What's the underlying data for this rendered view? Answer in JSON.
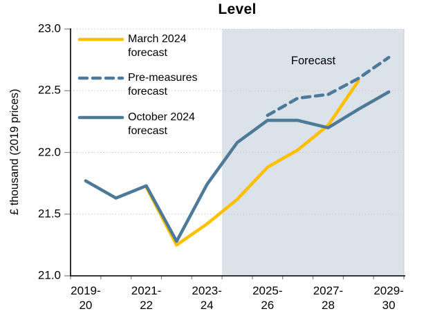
{
  "chart": {
    "title": "Level",
    "y_axis_title": "£ thousand (2019 prices)",
    "forecast_label": "Forecast",
    "legend": [
      {
        "label": "March 2024 forecast",
        "color": "#FFC000",
        "style": "solid"
      },
      {
        "label": "Pre-measures forecast",
        "color": "#4E7A99",
        "style": "dashed"
      },
      {
        "label": "October 2024 forecast",
        "color": "#4E7A99",
        "style": "solid"
      }
    ]
  },
  "colors": {
    "march_yellow": "#FFC000",
    "obr_blue": "#4E7A99",
    "forecast_region": "#DBE2EA",
    "gridline": "#C9C9C9",
    "axis": "#1A1A1A",
    "tick": "#7F7F7F"
  },
  "chart_data": {
    "type": "line",
    "title": "Level",
    "ylabel": "£ thousand (2019 prices)",
    "xlabel": "",
    "ylim": [
      21.0,
      23.0
    ],
    "grid": "horizontal-dotted",
    "legend_position": "top-left-inside",
    "forecast_region_label": "Forecast",
    "forecast_start_category": "2024-25",
    "categories": [
      "2019-20",
      "2020-21",
      "2021-22",
      "2022-23",
      "2023-24",
      "2024-25",
      "2025-26",
      "2026-27",
      "2027-28",
      "2028-29",
      "2029-30"
    ],
    "x_tick_labels": [
      "2019-20",
      "2021-22",
      "2023-24",
      "2025-26",
      "2027-28",
      "2029-30"
    ],
    "y_tick_labels": [
      "21.0",
      "21.5",
      "22.0",
      "22.5",
      "23.0"
    ],
    "series": [
      {
        "id": "march-2024-forecast",
        "name": "March 2024 forecast",
        "color": "#FFC000",
        "dash": "solid",
        "values": [
          null,
          null,
          21.72,
          21.25,
          21.42,
          21.62,
          21.88,
          22.02,
          22.22,
          22.58,
          null
        ]
      },
      {
        "id": "pre-measures-forecast",
        "name": "Pre-measures forecast",
        "color": "#4E7A99",
        "dash": "dashed",
        "values": [
          null,
          null,
          null,
          null,
          null,
          null,
          22.3,
          22.44,
          22.47,
          22.6,
          22.77
        ]
      },
      {
        "id": "october-2024-forecast",
        "name": "October 2024 forecast",
        "color": "#4E7A99",
        "dash": "solid",
        "values": [
          21.77,
          21.63,
          21.73,
          21.28,
          21.74,
          22.08,
          22.26,
          22.26,
          22.2,
          22.35,
          22.49
        ]
      }
    ]
  }
}
